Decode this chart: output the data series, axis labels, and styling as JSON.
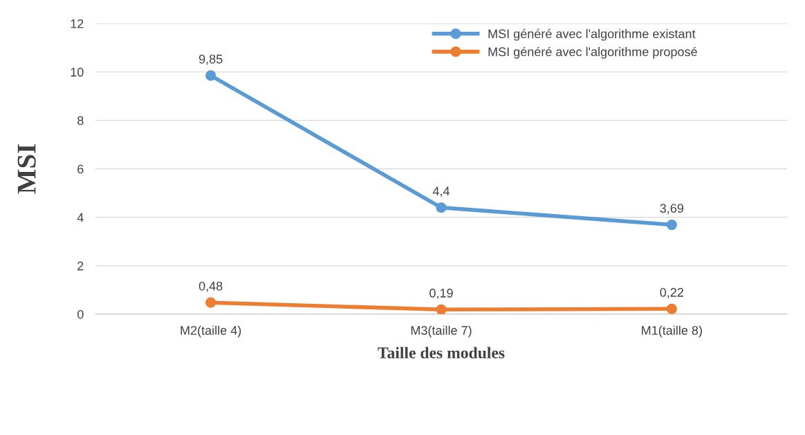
{
  "chart_data": {
    "type": "line",
    "xlabel": "Taille des modules",
    "ylabel": "MSI",
    "categories": [
      "M2(taille 4)",
      "M3(taille 7)",
      "M1(taille 8)"
    ],
    "series": [
      {
        "name": "MSI généré avec l'algorithme existant",
        "color": "#5b9bd5",
        "values": [
          9.85,
          4.4,
          3.69
        ],
        "value_labels": [
          "9,85",
          "4,4",
          "3,69"
        ]
      },
      {
        "name": "MSI généré avec l'algorithme proposé",
        "color": "#ed7d31",
        "values": [
          0.48,
          0.19,
          0.22
        ],
        "value_labels": [
          "0,48",
          "0,19",
          "0,22"
        ]
      }
    ],
    "ylim": [
      0,
      12
    ],
    "yticks": [
      0,
      2,
      4,
      6,
      8,
      10,
      12
    ],
    "grid": "y",
    "legend": "top",
    "marker": "circle",
    "line_style": "solid"
  }
}
